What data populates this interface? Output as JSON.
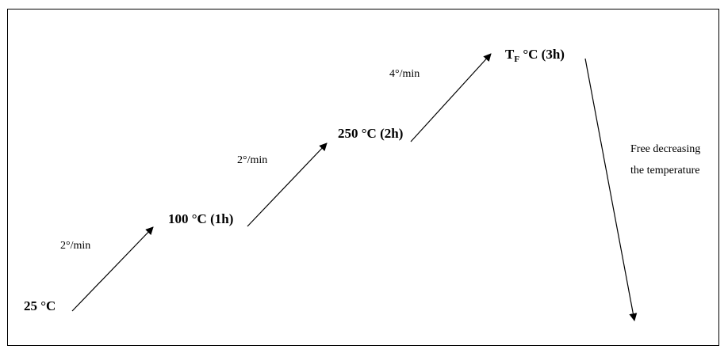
{
  "diagram": {
    "stages": [
      {
        "temp": "25 °C"
      },
      {
        "temp": "100 °C (1h)"
      },
      {
        "temp": "250 °C (2h)"
      },
      {
        "temp_main": "T",
        "temp_sub": "F",
        "temp_rest": " °C (3h)"
      }
    ],
    "rates": [
      "2°/min",
      "2°/min",
      "4°/min"
    ],
    "cooling_note": [
      "Free decreasing",
      "the temperature"
    ],
    "colors": {
      "line": "#000000",
      "text": "#000000",
      "background": "#ffffff"
    }
  }
}
